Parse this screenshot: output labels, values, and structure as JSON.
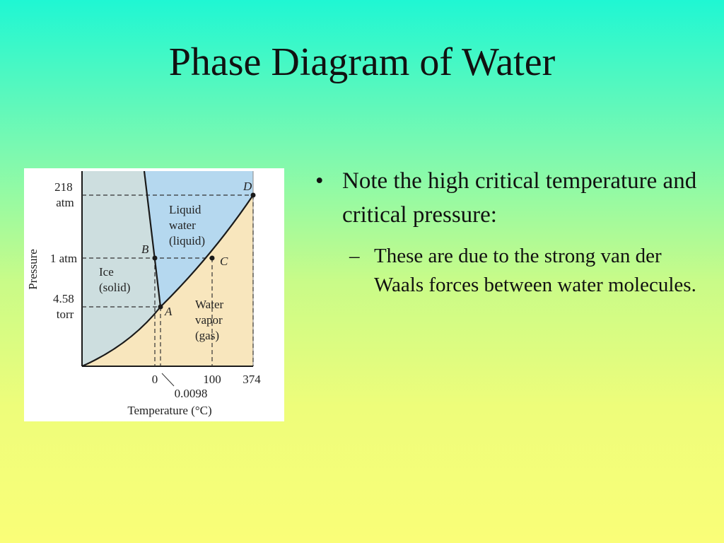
{
  "slide": {
    "title": "Phase Diagram of Water"
  },
  "bullets": [
    {
      "marker": "•",
      "text": "Note the high critical temperature and critical pressure:",
      "sub": [
        {
          "marker": "–",
          "text": "These are due to the strong van der Waals forces between water molecules."
        }
      ]
    }
  ],
  "diagram": {
    "axis_x_label": "Temperature (°C)",
    "axis_y_label": "Pressure",
    "x_ticks": [
      "0",
      "100",
      "374"
    ],
    "x_tick_extra": "0.0098",
    "y_ticks": [
      [
        "218",
        "atm"
      ],
      [
        "1 atm"
      ],
      [
        "4.58",
        "torr"
      ]
    ],
    "regions": {
      "solid": [
        "Ice",
        "(solid)"
      ],
      "liquid": [
        "Liquid",
        "water",
        "(liquid)"
      ],
      "gas": [
        "Water",
        "vapor",
        "(gas)"
      ]
    },
    "points": {
      "A": "A",
      "B": "B",
      "C": "C",
      "D": "D"
    },
    "colors": {
      "solid": "#cddedf",
      "liquid": "#b5d8ef",
      "gas": "#f8e6bd",
      "line": "#1a1a1a",
      "dashed": "#333333",
      "frame": "#1a1a1a"
    }
  }
}
